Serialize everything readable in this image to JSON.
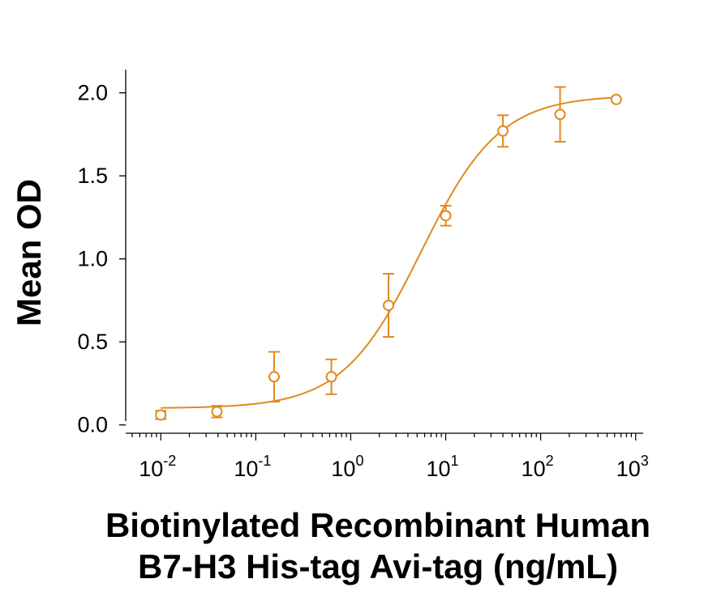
{
  "chart_data": {
    "type": "scatter",
    "xlabel_lines": [
      "Biotinylated Recombinant Human",
      "B7-H3 His-tag Avi-tag (ng/mL)"
    ],
    "ylabel": "Mean OD",
    "x_scale": "log",
    "xlim": [
      0.005,
      1200
    ],
    "ylim": [
      -0.05,
      2.12
    ],
    "x_ticks": [
      {
        "base": "10",
        "exp": "-2",
        "value": 0.01
      },
      {
        "base": "10",
        "exp": "-1",
        "value": 0.1
      },
      {
        "base": "10",
        "exp": "0",
        "value": 1
      },
      {
        "base": "10",
        "exp": "1",
        "value": 10
      },
      {
        "base": "10",
        "exp": "2",
        "value": 100
      },
      {
        "base": "10",
        "exp": "3",
        "value": 1000
      }
    ],
    "y_ticks": [
      "0.0",
      "0.5",
      "1.0",
      "1.5",
      "2.0"
    ],
    "grid": false,
    "color": "#E08A1E",
    "series": [
      {
        "points": [
          {
            "x": 0.01,
            "y": 0.06,
            "err": 0.025
          },
          {
            "x": 0.039,
            "y": 0.08,
            "err": 0.035
          },
          {
            "x": 0.156,
            "y": 0.29,
            "err": 0.15
          },
          {
            "x": 0.625,
            "y": 0.29,
            "err": 0.105
          },
          {
            "x": 2.5,
            "y": 0.72,
            "err": 0.19
          },
          {
            "x": 10,
            "y": 1.26,
            "err": 0.06
          },
          {
            "x": 40,
            "y": 1.77,
            "err": 0.095
          },
          {
            "x": 160,
            "y": 1.87,
            "err": 0.165
          },
          {
            "x": 625,
            "y": 1.96,
            "err": 0.0
          }
        ],
        "fit": {
          "model": "4PL",
          "bottom": 0.1,
          "top": 1.985,
          "ec50": 5.5,
          "hill": 1.05
        }
      }
    ]
  }
}
